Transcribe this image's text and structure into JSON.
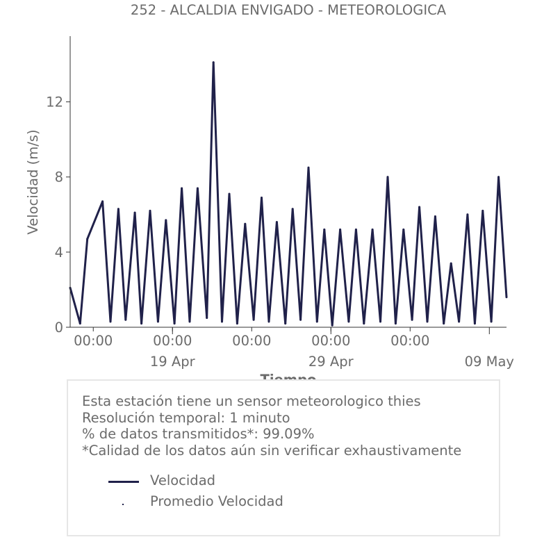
{
  "chart_data": {
    "type": "line",
    "title": "252 - ALCALDIA ENVIGADO - METEOROLOGICA",
    "xlabel": "Tiempo",
    "ylabel": "Velocidad (m/s)",
    "ylim": [
      0,
      15.5
    ],
    "yticks": [
      0,
      4,
      8,
      12
    ],
    "xlim": [
      "2025-04-12T13:00",
      "2025-05-10T02:00"
    ],
    "xticks": [
      {
        "at": "2025-04-14T00:00",
        "label": "00:00",
        "sublabel": ""
      },
      {
        "at": "2025-04-19T00:00",
        "label": "00:00",
        "sublabel": "19 Apr"
      },
      {
        "at": "2025-04-24T00:00",
        "label": "00:00",
        "sublabel": ""
      },
      {
        "at": "2025-04-29T00:00",
        "label": "00:00",
        "sublabel": "29 Apr"
      },
      {
        "at": "2025-05-04T00:00",
        "label": "00:00",
        "sublabel": ""
      }
    ],
    "xminor_ticks": [
      "2025-04-19T00:00",
      "2025-04-29T00:00",
      "2025-05-09T00:00"
    ],
    "xsublabels_extra": [
      {
        "at": "2025-05-09T00:00",
        "label": "09 May"
      }
    ],
    "series": [
      {
        "name": "Velocidad",
        "color": "#20214a",
        "x": [
          "2025-04-12T13:00",
          "2025-04-13T04:00",
          "2025-04-13T15:00",
          "2025-04-14T14:00",
          "2025-04-15T02:00",
          "2025-04-15T14:00",
          "2025-04-16T01:00",
          "2025-04-16T15:00",
          "2025-04-17T01:00",
          "2025-04-17T14:00",
          "2025-04-18T02:00",
          "2025-04-18T14:00",
          "2025-04-19T03:00",
          "2025-04-19T14:00",
          "2025-04-20T02:00",
          "2025-04-20T14:00",
          "2025-04-21T04:00",
          "2025-04-21T14:00",
          "2025-04-22T03:00",
          "2025-04-22T14:00",
          "2025-04-23T02:00",
          "2025-04-23T14:00",
          "2025-04-24T03:00",
          "2025-04-24T15:00",
          "2025-04-25T02:00",
          "2025-04-25T14:00",
          "2025-04-26T03:00",
          "2025-04-26T14:00",
          "2025-04-27T02:00",
          "2025-04-27T14:00",
          "2025-04-28T03:00",
          "2025-04-28T14:00",
          "2025-04-29T02:00",
          "2025-04-29T14:00",
          "2025-04-30T03:00",
          "2025-04-30T14:00",
          "2025-05-01T02:00",
          "2025-05-01T15:00",
          "2025-05-02T03:00",
          "2025-05-02T14:00",
          "2025-05-03T02:00",
          "2025-05-03T14:00",
          "2025-05-04T03:00",
          "2025-05-04T14:00",
          "2025-05-05T02:00",
          "2025-05-05T14:00",
          "2025-05-06T03:00",
          "2025-05-06T14:00",
          "2025-05-07T02:00",
          "2025-05-07T15:00",
          "2025-05-08T02:00",
          "2025-05-08T14:00",
          "2025-05-09T03:00",
          "2025-05-09T14:00",
          "2025-05-10T02:00"
        ],
        "y": [
          2.1,
          0.2,
          4.7,
          6.7,
          0.3,
          6.3,
          0.4,
          6.1,
          0.2,
          6.2,
          0.3,
          5.7,
          0.2,
          7.4,
          0.3,
          7.4,
          0.5,
          14.1,
          0.3,
          7.1,
          0.2,
          5.5,
          0.4,
          6.9,
          0.3,
          5.6,
          0.2,
          6.3,
          0.4,
          8.5,
          0.3,
          5.2,
          0.1,
          5.2,
          0.3,
          5.2,
          0.2,
          5.2,
          0.3,
          8.0,
          0.2,
          5.2,
          0.4,
          6.4,
          0.3,
          5.9,
          0.2,
          3.4,
          0.3,
          6.0,
          0.2,
          6.2,
          0.3,
          8.0,
          1.6
        ]
      },
      {
        "name": "Promedio Velocidad",
        "color": "#20214a",
        "marker": "dot"
      }
    ]
  },
  "info": {
    "lines": [
      "Esta estación tiene un sensor meteorologico thies",
      "Resolución temporal: 1 minuto",
      "% de datos transmitidos*: 99.09%",
      "*Calidad de los datos aún sin verificar exhaustivamente"
    ]
  },
  "legend": {
    "items": [
      {
        "label": "Velocidad"
      },
      {
        "label": "Promedio Velocidad"
      }
    ]
  }
}
